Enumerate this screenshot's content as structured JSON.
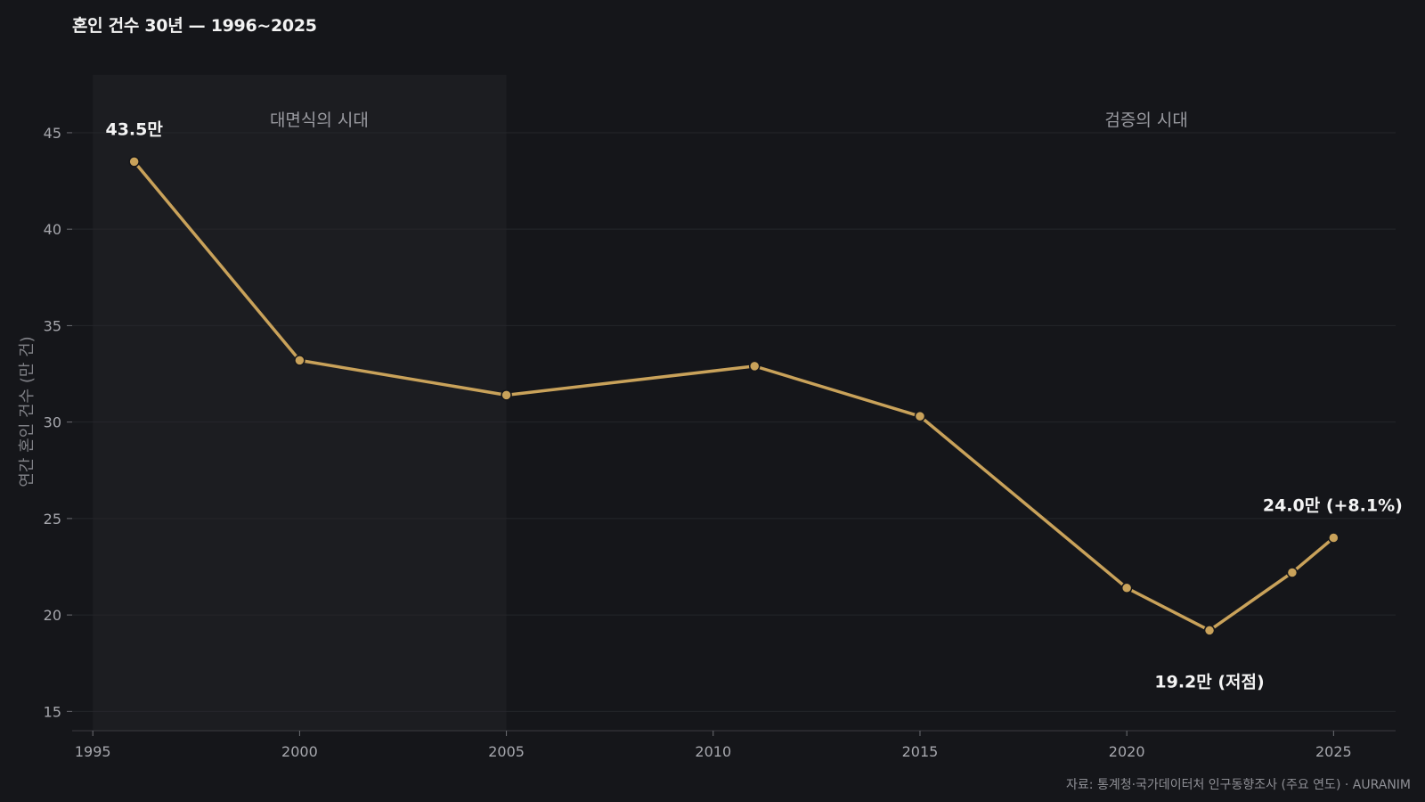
{
  "title": "혼인 건수 30년 — 1996~2025",
  "source": "자료: 통계청·국가데이터처 인구동향조사 (주요 연도) · AURANIM",
  "colors": {
    "background": "#15161a",
    "line": "#c9a25a",
    "shade": "#1c1d21",
    "grid": "#25262b"
  },
  "chart_data": {
    "type": "line",
    "title": "혼인 건수 30년 — 1996~2025",
    "xlabel": "",
    "ylabel": "연간 혼인 건수 (만 건)",
    "xlim": [
      1994.5,
      2026.5
    ],
    "ylim": [
      14,
      48
    ],
    "x_ticks": [
      1995,
      2000,
      2005,
      2010,
      2015,
      2020,
      2025
    ],
    "y_ticks": [
      15,
      20,
      25,
      30,
      35,
      40,
      45
    ],
    "grid": true,
    "series": [
      {
        "x": [
          1996,
          2000,
          2005,
          2011,
          2015,
          2020,
          2022,
          2024,
          2025
        ],
        "y": [
          43.5,
          33.2,
          31.4,
          32.9,
          30.3,
          21.4,
          19.2,
          22.2,
          24.0
        ]
      }
    ],
    "shaded_region": {
      "x": [
        1995,
        2005
      ],
      "label": "대면식의 시대"
    },
    "era_labels": [
      {
        "text": "대면식의 시대",
        "x": 2000
      },
      {
        "text": "검증의 시대",
        "x": 2020
      }
    ],
    "annotations": [
      {
        "text": "43.5만",
        "x": 1996,
        "y": 43.5,
        "placement": "above"
      },
      {
        "text": "19.2만 (저점)",
        "x": 2022,
        "y": 19.2,
        "placement": "below"
      },
      {
        "text": "24.0만 (+8.1%)",
        "x": 2025,
        "y": 24.0,
        "placement": "above"
      }
    ]
  }
}
